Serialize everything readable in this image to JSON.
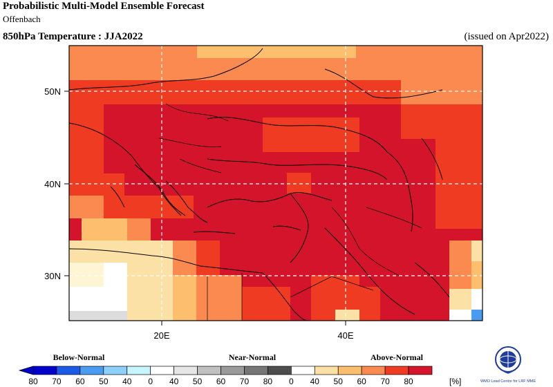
{
  "header": {
    "title": "Probabilistic Multi-Model Ensemble Forecast",
    "center": "Offenbach",
    "variable_title": "850hPa Temperature : JJA2022",
    "issued": "(issued on Apr2022)"
  },
  "map": {
    "lon_range": [
      10,
      55
    ],
    "lat_range": [
      25,
      55
    ],
    "lat_ticks": [
      {
        "value": 50,
        "label": "50N"
      },
      {
        "value": 40,
        "label": "40N"
      },
      {
        "value": 30,
        "label": "30N"
      }
    ],
    "lon_ticks": [
      {
        "value": 20,
        "label": "20E"
      },
      {
        "value": 40,
        "label": "40E"
      }
    ],
    "gridlines": true
  },
  "legend": {
    "groups": [
      {
        "label": "Below-Normal"
      },
      {
        "label": "Near-Normal"
      },
      {
        "label": "Above-Normal"
      }
    ],
    "tick_labels": [
      "80",
      "70",
      "60",
      "50",
      "40",
      "0",
      "40",
      "50",
      "60",
      "70",
      "80",
      "0",
      "40",
      "50",
      "60",
      "70",
      "80"
    ],
    "unit": "[%]",
    "colors": [
      "#0000cc",
      "#1a5ae6",
      "#4a9cf0",
      "#8fd0fa",
      "#c8f4ff",
      "#ffffff",
      "#e6e6e6",
      "#c0c0c0",
      "#9a9a9a",
      "#757575",
      "#4d4d4d",
      "#ffffff",
      "#fce1a6",
      "#fdbe6e",
      "#fa8a50",
      "#ef3b22",
      "#d4142a"
    ]
  },
  "logo": {
    "text": "WMO Lead Centre for LRF MME",
    "icon": "wmo-globe-icon"
  }
}
